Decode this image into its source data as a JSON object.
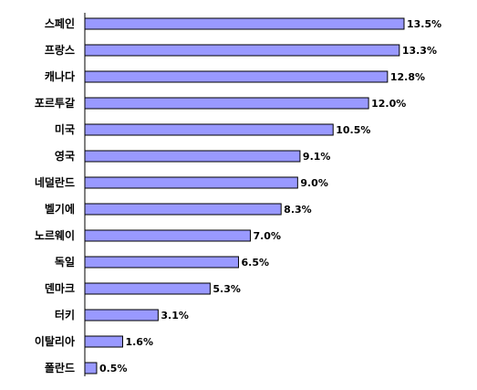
{
  "chart_data": {
    "type": "bar",
    "orientation": "horizontal",
    "categories": [
      "스페인",
      "프랑스",
      "캐나다",
      "포르투갈",
      "미국",
      "영국",
      "네덜란드",
      "벨기에",
      "노르웨이",
      "독일",
      "덴마크",
      "터키",
      "이탈리아",
      "폴란드"
    ],
    "values": [
      13.5,
      13.3,
      12.8,
      12.0,
      10.5,
      9.1,
      9.0,
      8.3,
      7.0,
      6.5,
      5.3,
      3.1,
      1.6,
      0.5
    ],
    "value_labels": [
      "13.5%",
      "13.3%",
      "12.8%",
      "12.0%",
      "10.5%",
      "9.1%",
      "9.0%",
      "8.3%",
      "7.0%",
      "6.5%",
      "5.3%",
      "3.1%",
      "1.6%",
      "0.5%"
    ],
    "unit": "%",
    "title": "",
    "xlabel": "",
    "ylabel": "",
    "xlim": [
      0,
      13.5
    ],
    "grid": false,
    "legend": "none",
    "bar_color": "#9999ff",
    "bar_border_color": "#000000"
  }
}
